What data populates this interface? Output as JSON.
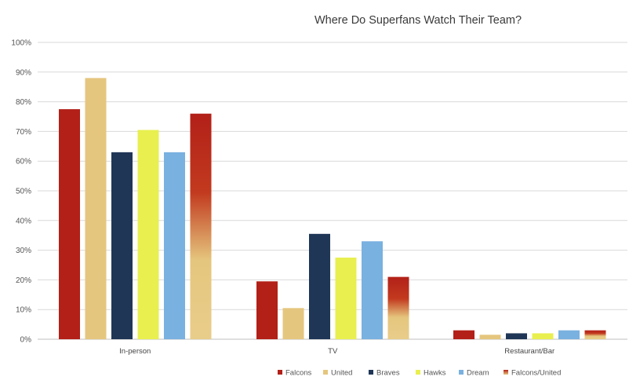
{
  "chart_data": {
    "type": "bar",
    "title": "Where Do Superfans Watch Their Team?",
    "xlabel": "",
    "ylabel": "",
    "ylim": [
      0,
      100
    ],
    "yticks": [
      "0%",
      "10%",
      "20%",
      "30%",
      "40%",
      "50%",
      "60%",
      "70%",
      "80%",
      "90%",
      "100%"
    ],
    "categories": [
      "In-person",
      "TV",
      "Restaurant/Bar"
    ],
    "series": [
      {
        "name": "Falcons",
        "color": "#b22018",
        "values": [
          77.5,
          19.5,
          3
        ]
      },
      {
        "name": "United",
        "color": "#e5c67e",
        "values": [
          88,
          10.5,
          1.5
        ]
      },
      {
        "name": "Braves",
        "color": "#1f3657",
        "values": [
          63,
          35.5,
          2
        ]
      },
      {
        "name": "Hawks",
        "color": "#e8ef4f",
        "values": [
          70.5,
          27.5,
          2
        ]
      },
      {
        "name": "Dream",
        "color": "#79b1e0",
        "values": [
          63,
          33,
          3
        ]
      },
      {
        "name": "Falcons/United",
        "color": "#b22018",
        "color2": "#e5c67e",
        "gradient": true,
        "values": [
          76,
          21,
          3
        ]
      }
    ],
    "grid": true,
    "legend": "bottom-right"
  }
}
